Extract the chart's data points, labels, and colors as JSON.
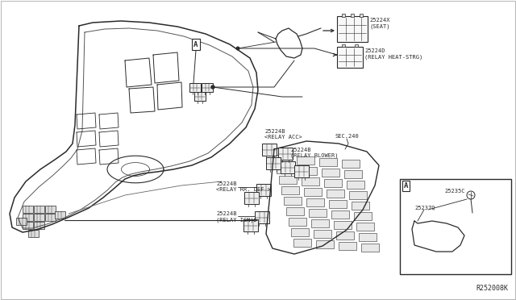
{
  "bg_color": "#ffffff",
  "line_color": "#2a2a2a",
  "fig_width": 6.4,
  "fig_height": 3.72,
  "dpi": 100,
  "labels": {
    "seat": "25224X\n(SEAT)",
    "heat_strg": "25224D\n(RELAY HEAT-STRG)",
    "relay_acc": "25224B\n<RELAY ACC>",
    "relay_blower": "25224B\n(RELAY BLOWER)",
    "relay_rr_def": "25224B\n<RELAY RR. DEF >",
    "relay_ign": "25224B\n(RELAY IGN)",
    "sec240": "SEC.240",
    "part_a_label": "A",
    "part_25235c": "25235C",
    "part_25237q": "25237Q",
    "ref_code": "R252008K",
    "callout_a": "A"
  },
  "font_size_label": 5.5,
  "font_size_tiny": 5.0,
  "font_size_ref": 6.0,
  "font_size_callout": 6.5
}
